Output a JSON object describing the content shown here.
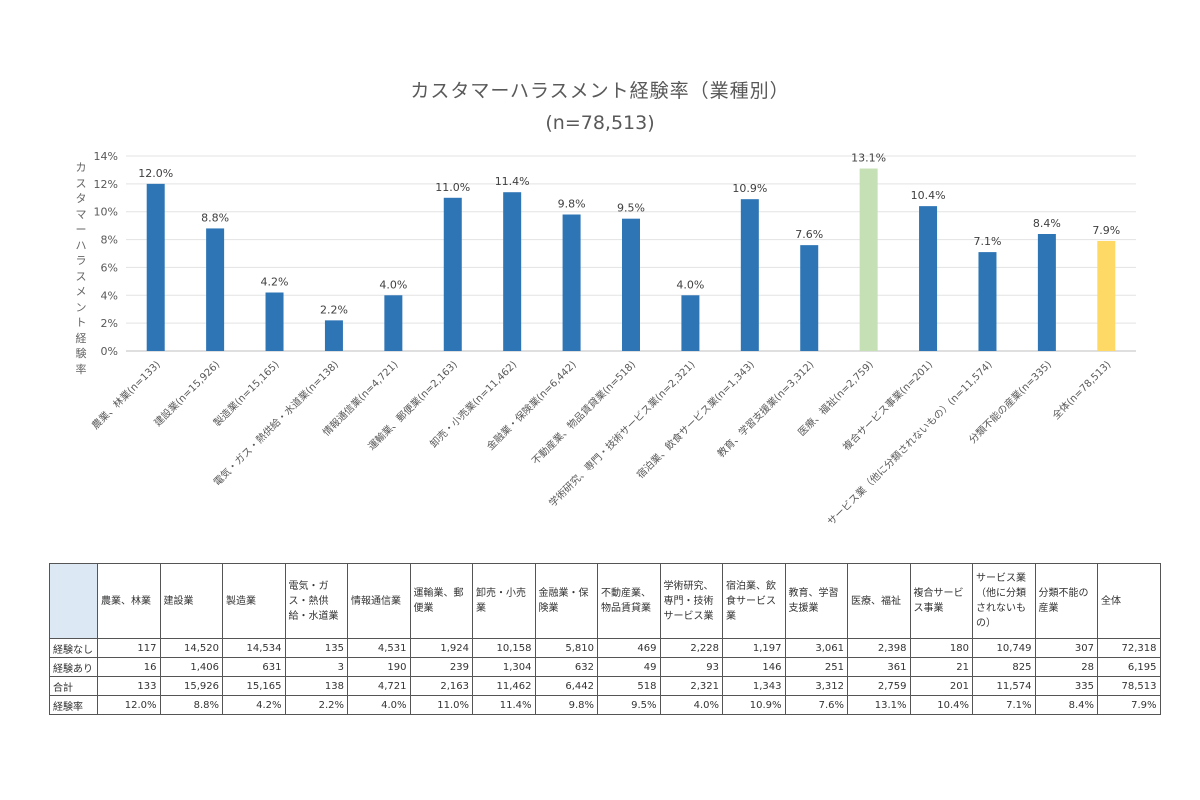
{
  "chart_data": {
    "type": "bar",
    "title": "カスタマーハラスメント経験率（業種別）",
    "subtitle": "(n=78,513)",
    "ylabel": "カスタマーハラスメント経験率",
    "xlabel": "",
    "ylim": [
      0,
      14
    ],
    "yticks": [
      "0%",
      "2%",
      "4%",
      "6%",
      "8%",
      "10%",
      "12%",
      "14%"
    ],
    "grid": true,
    "categories": [
      "農業、林業(n=133)",
      "建設業(n=15,926)",
      "製造業(n=15,165)",
      "電気・ガス・熱供給・水道業(n=138)",
      "情報通信業(n=4,721)",
      "運輸業、郵便業(n=2,163)",
      "卸売・小売業(n=11,462)",
      "金融業・保険業(n=6,442)",
      "不動産業、物品賃貸業(n=518)",
      "学術研究、専門・技術サービス業(n=2,321)",
      "宿泊業、飲食サービス業(n=1,343)",
      "教育、学習支援業(n=3,312)",
      "医療、福祉(n=2,759)",
      "複合サービス事業(n=201)",
      "サービス業（他に分類されないもの）(n=11,574)",
      "分類不能の産業(n=335)",
      "全体(n=78,513)"
    ],
    "values": [
      12.0,
      8.8,
      4.2,
      2.2,
      4.0,
      11.0,
      11.4,
      9.8,
      9.5,
      4.0,
      10.9,
      7.6,
      13.1,
      10.4,
      7.1,
      8.4,
      7.9
    ],
    "value_labels": [
      "12.0%",
      "8.8%",
      "4.2%",
      "2.2%",
      "4.0%",
      "11.0%",
      "11.4%",
      "9.8%",
      "9.5%",
      "4.0%",
      "10.9%",
      "7.6%",
      "13.1%",
      "10.4%",
      "7.1%",
      "8.4%",
      "7.9%"
    ],
    "bar_colors": [
      "#2e75b6",
      "#2e75b6",
      "#2e75b6",
      "#2e75b6",
      "#2e75b6",
      "#2e75b6",
      "#2e75b6",
      "#2e75b6",
      "#2e75b6",
      "#2e75b6",
      "#2e75b6",
      "#2e75b6",
      "#c5e0b4",
      "#2e75b6",
      "#2e75b6",
      "#2e75b6",
      "#ffd966"
    ]
  },
  "table": {
    "headers": [
      "農業、林業",
      "建設業",
      "製造業",
      "電気・ガス・熱供給・水道業",
      "情報通信業",
      "運輸業、郵便業",
      "卸売・小売業",
      "金融業・保険業",
      "不動産業、物品賃貸業",
      "学術研究、専門・技術サービス業",
      "宿泊業、飲食サービス業",
      "教育、学習支援業",
      "医療、福祉",
      "複合サービス事業",
      "サービス業（他に分類されないもの）",
      "分類不能の産業",
      "全体"
    ],
    "rows": [
      {
        "label": "経験なし",
        "values": [
          "117",
          "14,520",
          "14,534",
          "135",
          "4,531",
          "1,924",
          "10,158",
          "5,810",
          "469",
          "2,228",
          "1,197",
          "3,061",
          "2,398",
          "180",
          "10,749",
          "307",
          "72,318"
        ]
      },
      {
        "label": "経験あり",
        "values": [
          "16",
          "1,406",
          "631",
          "3",
          "190",
          "239",
          "1,304",
          "632",
          "49",
          "93",
          "146",
          "251",
          "361",
          "21",
          "825",
          "28",
          "6,195"
        ]
      },
      {
        "label": "合計",
        "values": [
          "133",
          "15,926",
          "15,165",
          "138",
          "4,721",
          "2,163",
          "11,462",
          "6,442",
          "518",
          "2,321",
          "1,343",
          "3,312",
          "2,759",
          "201",
          "11,574",
          "335",
          "78,513"
        ]
      },
      {
        "label": "経験率",
        "values": [
          "12.0%",
          "8.8%",
          "4.2%",
          "2.2%",
          "4.0%",
          "11.0%",
          "11.4%",
          "9.8%",
          "9.5%",
          "4.0%",
          "10.9%",
          "7.6%",
          "13.1%",
          "10.4%",
          "7.1%",
          "8.4%",
          "7.9%"
        ]
      }
    ]
  }
}
